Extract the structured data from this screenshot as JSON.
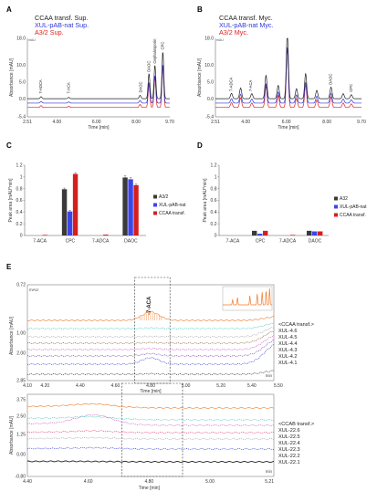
{
  "colors": {
    "black": "#222222",
    "blue": "#2b36d9",
    "red": "#e0201c",
    "dark_bar": "#3a3a3a",
    "blue_bar": "#3d45e8",
    "red_bar": "#d41f1f",
    "orange": "#f07a2a"
  },
  "chart_data": [
    {
      "panel": "A",
      "type": "line",
      "legend": [
        {
          "name": "CCAA transf. Sup.",
          "color": "#222222"
        },
        {
          "name": "XUL-pAB-nat Sup.",
          "color": "#2b36d9"
        },
        {
          "name": "A3/2 Sup.",
          "color": "#e0201c"
        }
      ],
      "unit_label": "mAU",
      "ylabel": "Absorbance [mAU]",
      "xlabel": "Time [min]",
      "xticks": [
        "2.51",
        "4.00",
        "6.00",
        "8.00",
        "9.70"
      ],
      "yticks": [
        "18.0",
        "10.0",
        "5.0",
        "0.0",
        "-5.4"
      ],
      "xlim": [
        2.51,
        9.7
      ],
      "ylim": [
        -5.4,
        18.0
      ],
      "peak_labels": [
        "7-ADCA",
        "7-ACA",
        "DAOC",
        "DAOC",
        "Cephalosporin",
        "CPC"
      ],
      "peaks": [
        {
          "x": 3.2,
          "h": 0.6
        },
        {
          "x": 4.6,
          "h": 0.4
        },
        {
          "x": 8.2,
          "h": 1.0
        },
        {
          "x": 8.65,
          "h": 7.5
        },
        {
          "x": 8.95,
          "h": 10.0
        },
        {
          "x": 9.35,
          "h": 14.0
        }
      ]
    },
    {
      "panel": "B",
      "type": "line",
      "legend": [
        {
          "name": "CCAA transf. Myc.",
          "color": "#222222"
        },
        {
          "name": "XUL-pAB-nat Myc.",
          "color": "#2b36d9"
        },
        {
          "name": "A3/2 Myc.",
          "color": "#e0201c"
        }
      ],
      "unit_label": "mAU",
      "ylabel": "Absorbance [mAU]",
      "xlabel": "Time [min]",
      "xticks": [
        "2.51",
        "4.00",
        "6.00",
        "8.00",
        "9.70"
      ],
      "yticks": [
        "18.0",
        "10.0",
        "5.0",
        "0.0",
        "-5.4"
      ],
      "xlim": [
        2.51,
        9.7
      ],
      "ylim": [
        -5.4,
        18.0
      ],
      "peak_labels": [
        "7-ADCA",
        "7-ACA",
        "DAOC",
        "CPC"
      ],
      "peaks": [
        {
          "x": 3.3,
          "h": 1.6
        },
        {
          "x": 3.75,
          "h": 3.2
        },
        {
          "x": 4.3,
          "h": 1.5
        },
        {
          "x": 5.0,
          "h": 7.0
        },
        {
          "x": 5.6,
          "h": 4.0
        },
        {
          "x": 6.05,
          "h": 20.0
        },
        {
          "x": 6.5,
          "h": 3.0
        },
        {
          "x": 6.95,
          "h": 7.5
        },
        {
          "x": 7.5,
          "h": 2.5
        },
        {
          "x": 8.2,
          "h": 3.5
        },
        {
          "x": 8.8,
          "h": 1.5
        },
        {
          "x": 9.2,
          "h": 1.2
        }
      ]
    },
    {
      "panel": "C",
      "type": "bar",
      "ylabel": "Peak area [mAU*min]",
      "categories": [
        "7-ACA",
        "CPC",
        "7-ADCA",
        "DAOC"
      ],
      "yticks": [
        "1.2",
        "1",
        "0.8",
        "0.6",
        "0.4",
        "0.2",
        "0"
      ],
      "ylim": [
        0,
        1.2
      ],
      "legend": [
        "A3/2",
        "XUL-pAB-nat",
        "CCAA transf."
      ],
      "series": [
        {
          "name": "A3/2",
          "values": [
            0.0,
            0.79,
            0.0,
            0.99
          ],
          "err": [
            0,
            0.02,
            0,
            0.03
          ]
        },
        {
          "name": "XUL-pAB-nat",
          "values": [
            0.0,
            0.41,
            0.0,
            0.96
          ],
          "err": [
            0,
            0.02,
            0,
            0.03
          ]
        },
        {
          "name": "CCAA transf.",
          "values": [
            0.01,
            1.05,
            0.015,
            0.86
          ],
          "err": [
            0,
            0.02,
            0,
            0.02
          ]
        }
      ]
    },
    {
      "panel": "D",
      "type": "bar",
      "ylabel": "Peak area [mAU*min]",
      "categories": [
        "7-ACA",
        "CPC",
        "7-ADCA",
        "DAOC"
      ],
      "yticks": [
        "1.2",
        "1",
        "0.8",
        "0.6",
        "0.4",
        "0.2",
        "0"
      ],
      "ylim": [
        0,
        1.2
      ],
      "legend": [
        "A32",
        "XUL-pAB-nat",
        "CCAA transf."
      ],
      "series": [
        {
          "name": "A32",
          "values": [
            0.0,
            0.08,
            0.0,
            0.08
          ]
        },
        {
          "name": "XUL-pAB-nat",
          "values": [
            0.0,
            0.03,
            0.0,
            0.07
          ]
        },
        {
          "name": "CCAA transf.",
          "values": [
            0.0,
            0.08,
            0.01,
            0.07
          ]
        }
      ]
    },
    {
      "panel": "E",
      "type": "line",
      "unit_label": "mAU",
      "ylabel": "Absorbance [mAU]",
      "xlabel": "Time [min]",
      "x_end_label": "min",
      "box_label": "-7-ACA",
      "xticks": [
        "4.10",
        "4.20",
        "4.40",
        "4.60",
        "4.80",
        "5.00",
        "5.20",
        "5.40",
        "5.50"
      ],
      "yticks": [
        "0.72",
        "1.00",
        "2.00",
        "2.85"
      ],
      "xlim": [
        4.1,
        5.5
      ],
      "traces": [
        {
          "name": "<CCAA transf.>",
          "color": "#f07a2a"
        },
        {
          "name": "XUL-4.6",
          "color": "#33c6b8"
        },
        {
          "name": "XUL-4.5",
          "color": "#a0a0a0"
        },
        {
          "name": "XUL-4.4",
          "color": "#8a5a2a"
        },
        {
          "name": "XUL-4.3",
          "color": "#d050c0"
        },
        {
          "name": "XUL-4.2",
          "color": "#7a3ab0"
        },
        {
          "name": "XUL-4.1",
          "color": "#2b36d9"
        },
        {
          "name": "",
          "color": "#222222"
        }
      ]
    },
    {
      "panel": "E2",
      "type": "line",
      "ylabel": "Absorbance [mAU]",
      "xlabel": "Time [min]",
      "x_end_label": "min",
      "xticks": [
        "4.40",
        "4.60",
        "4.80",
        "5.00",
        "5.21"
      ],
      "yticks": [
        "3.75",
        "2.50",
        "1.25",
        "0.00",
        "-0.80"
      ],
      "xlim": [
        4.4,
        5.21
      ],
      "traces": [
        {
          "name": "<CCAB transf.>",
          "color": "#f07a2a"
        },
        {
          "name": "XUL-22.6",
          "color": "#33c6b8"
        },
        {
          "name": "XUL-22.5",
          "color": "#d050c0"
        },
        {
          "name": "XUL-22.4",
          "color": "#e03060"
        },
        {
          "name": "XUL-22.3",
          "color": "#a0a0a0"
        },
        {
          "name": "XUL-22.2",
          "color": "#2b36d9"
        },
        {
          "name": "XUL-22.1",
          "color": "#222222"
        }
      ]
    }
  ]
}
